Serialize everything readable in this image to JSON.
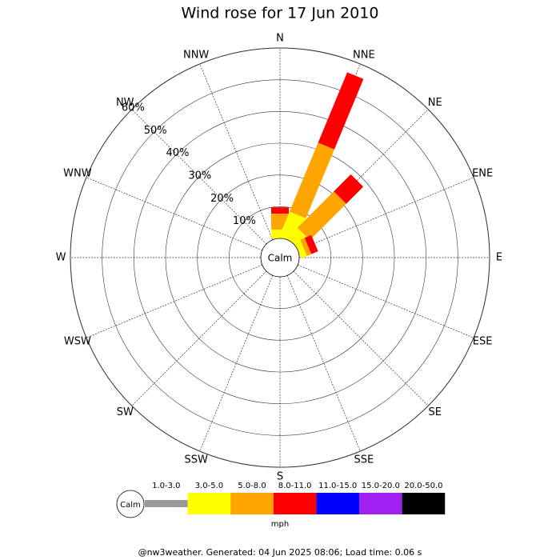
{
  "chart_data": {
    "type": "windrose",
    "title": "Wind rose for 17 Jun 2010",
    "categories": [
      "N",
      "NNE",
      "NE",
      "ENE",
      "E",
      "ESE",
      "SE",
      "SSE",
      "S",
      "SSW",
      "SW",
      "WSW",
      "W",
      "WNW",
      "NW",
      "NNW"
    ],
    "calm_label": "Calm",
    "rlim": [
      0,
      60
    ],
    "rticks": [
      {
        "value": 10,
        "label": "10%"
      },
      {
        "value": 20,
        "label": "20%"
      },
      {
        "value": 30,
        "label": "30%"
      },
      {
        "value": 40,
        "label": "40%"
      },
      {
        "value": 50,
        "label": "50%"
      },
      {
        "value": 60,
        "label": "60%"
      }
    ],
    "series": [
      {
        "name": "1.0-3.0",
        "color": "#999999",
        "values": [
          0,
          0,
          0,
          0,
          0,
          0,
          0,
          0,
          0,
          0,
          0,
          0,
          0,
          0,
          0,
          0
        ]
      },
      {
        "name": "3.0-5.0",
        "color": "#ffff00",
        "values": [
          2.8,
          8.5,
          4.5,
          2,
          0,
          0,
          0,
          0,
          0,
          0,
          0,
          0,
          0,
          0,
          0,
          0
        ]
      },
      {
        "name": "5.0-8.0",
        "color": "#ffa500",
        "values": [
          5,
          23.5,
          16.2,
          1.5,
          0,
          0,
          0,
          0,
          0,
          0,
          0,
          0,
          0,
          0,
          0,
          0
        ]
      },
      {
        "name": "8.0-11.0",
        "color": "#ff0000",
        "values": [
          2,
          24,
          7.6,
          2.3,
          0,
          0,
          0,
          0,
          0,
          0,
          0,
          0,
          0,
          0,
          0,
          0
        ]
      },
      {
        "name": "11.0-15.0",
        "color": "#0000ff",
        "values": [
          0,
          0,
          0,
          0,
          0,
          0,
          0,
          0,
          0,
          0,
          0,
          0,
          0,
          0,
          0,
          0
        ]
      },
      {
        "name": "15.0-20.0",
        "color": "#a020f0",
        "values": [
          0,
          0,
          0,
          0,
          0,
          0,
          0,
          0,
          0,
          0,
          0,
          0,
          0,
          0,
          0,
          0
        ]
      },
      {
        "name": "20.0-50.0",
        "color": "#000000",
        "values": [
          0,
          0,
          0,
          0,
          0,
          0,
          0,
          0,
          0,
          0,
          0,
          0,
          0,
          0,
          0,
          0
        ]
      }
    ],
    "legend_calm": "Calm",
    "unit": "mph",
    "footer": "@nw3weather. Generated: 04 Jun 2025 08:06; Load time: 0.06 s"
  }
}
